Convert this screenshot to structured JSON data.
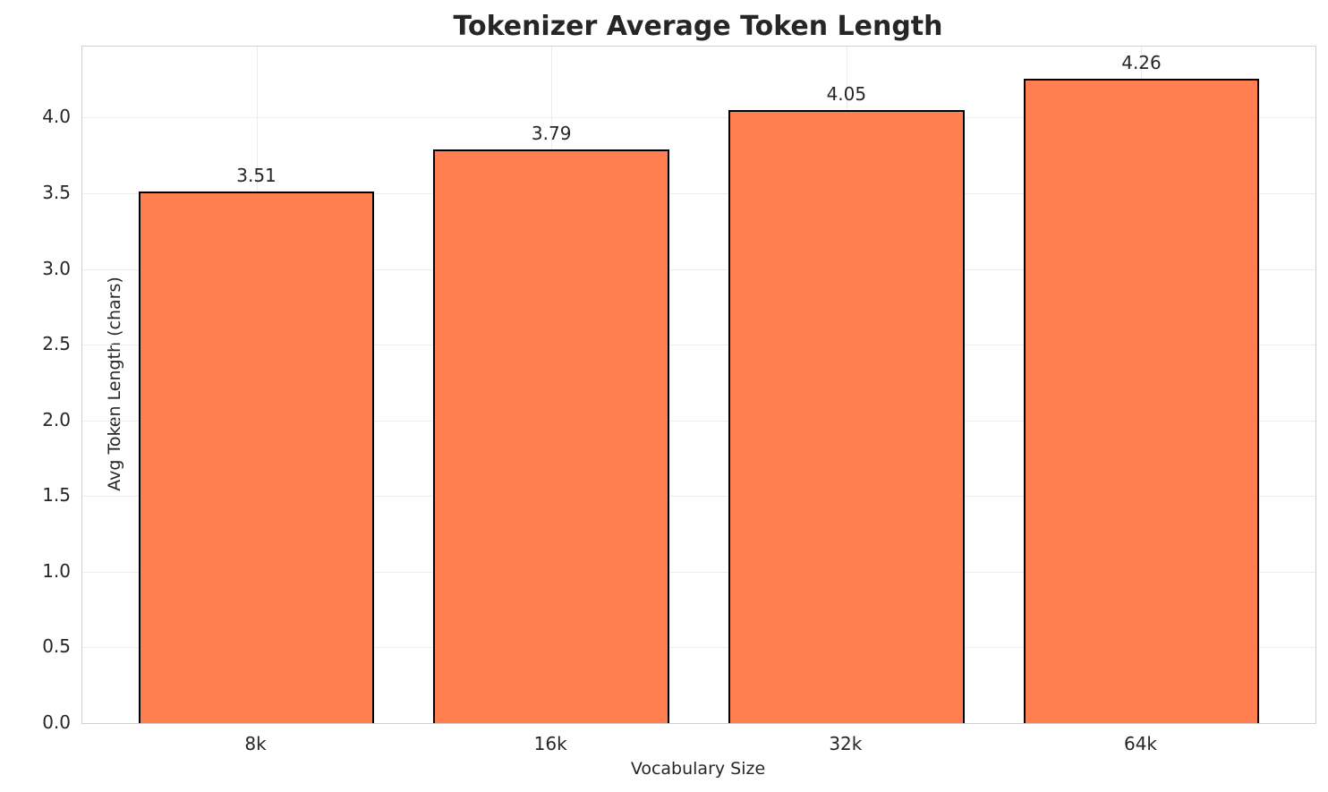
{
  "chart_data": {
    "type": "bar",
    "title": "Tokenizer Average Token Length",
    "xlabel": "Vocabulary Size",
    "ylabel": "Avg Token Length (chars)",
    "categories": [
      "8k",
      "16k",
      "32k",
      "64k"
    ],
    "values": [
      3.51,
      3.79,
      4.05,
      4.26
    ],
    "bar_value_labels": [
      "3.51",
      "3.79",
      "4.05",
      "4.26"
    ],
    "ylim": [
      0,
      4.47
    ],
    "xlim": [
      -0.59,
      3.59
    ],
    "yticks": [
      0,
      0.5,
      1,
      1.5,
      2,
      2.5,
      3,
      3.5,
      4
    ],
    "ytick_labels": [
      "0.0",
      "0.5",
      "1.0",
      "1.5",
      "2.0",
      "2.5",
      "3.0",
      "3.5",
      "4.0"
    ],
    "bar_width": 0.8,
    "grid": true,
    "legend": false,
    "colors": {
      "bar_fill": "#FF7F50",
      "bar_edge": "#000000",
      "grid_line": "#ececec",
      "spine": "#d0d0d0",
      "text": "#262626",
      "background": "#ffffff"
    }
  }
}
